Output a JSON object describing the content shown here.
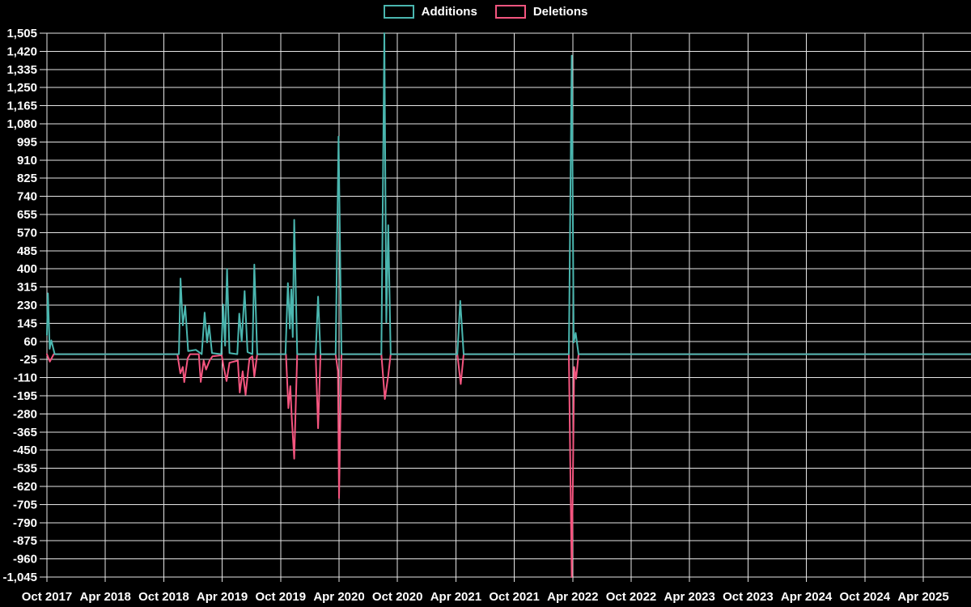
{
  "page": {
    "background": "#000000",
    "text_color": "#ffffff",
    "grid_color": "#e6e6e6"
  },
  "legend": {
    "items": [
      {
        "label": "Additions",
        "color": "#4ab6af"
      },
      {
        "label": "Deletions",
        "color": "#f4557f"
      }
    ]
  },
  "chart_data": {
    "type": "line",
    "title": "",
    "xlabel": "",
    "ylabel": "",
    "grid": true,
    "legend_position": "top-center",
    "x_axis": {
      "tick_labels": [
        "Oct 2017",
        "Apr 2018",
        "Oct 2018",
        "Apr 2019",
        "Oct 2019",
        "Apr 2020",
        "Oct 2020",
        "Apr 2021",
        "Oct 2021",
        "Apr 2022",
        "Oct 2022",
        "Apr 2023",
        "Oct 2023",
        "Apr 2024",
        "Oct 2024",
        "Apr 2025"
      ],
      "tick_interval_months": 6,
      "range_months_since_oct_2017": [
        0,
        94.9
      ]
    },
    "y_axis": {
      "min": -1045,
      "max": 1505,
      "step": 85,
      "ticks": [
        1505,
        1420,
        1335,
        1250,
        1165,
        1080,
        995,
        910,
        825,
        740,
        655,
        570,
        485,
        400,
        315,
        230,
        145,
        60,
        -25,
        -110,
        -195,
        -280,
        -365,
        -450,
        -535,
        -620,
        -705,
        -790,
        -875,
        -960,
        -1045
      ]
    },
    "series": [
      {
        "name": "Additions",
        "color": "#4ab6af",
        "points": [
          [
            0,
            90
          ],
          [
            0.1,
            285
          ],
          [
            0.28,
            25
          ],
          [
            0.45,
            65
          ],
          [
            0.8,
            0
          ],
          [
            13.3,
            0
          ],
          [
            13.55,
            0
          ],
          [
            13.72,
            355
          ],
          [
            13.95,
            135
          ],
          [
            14.2,
            225
          ],
          [
            14.5,
            15
          ],
          [
            15.3,
            20
          ],
          [
            15.9,
            0
          ],
          [
            16.2,
            195
          ],
          [
            16.45,
            55
          ],
          [
            16.65,
            135
          ],
          [
            16.95,
            5
          ],
          [
            17.9,
            0
          ],
          [
            18.1,
            233
          ],
          [
            18.3,
            40
          ],
          [
            18.5,
            400
          ],
          [
            18.75,
            5
          ],
          [
            19.55,
            0
          ],
          [
            19.75,
            190
          ],
          [
            20.0,
            60
          ],
          [
            20.3,
            296
          ],
          [
            20.6,
            10
          ],
          [
            21.1,
            0
          ],
          [
            21.3,
            420
          ],
          [
            21.6,
            0
          ],
          [
            24.5,
            0
          ],
          [
            24.75,
            333
          ],
          [
            24.95,
            120
          ],
          [
            25.1,
            304
          ],
          [
            25.25,
            80
          ],
          [
            25.4,
            630
          ],
          [
            25.7,
            0
          ],
          [
            27.6,
            0
          ],
          [
            27.85,
            270
          ],
          [
            28.1,
            0
          ],
          [
            29.65,
            0
          ],
          [
            29.95,
            1020
          ],
          [
            30.25,
            0
          ],
          [
            34.35,
            0
          ],
          [
            34.65,
            1505
          ],
          [
            34.85,
            150
          ],
          [
            35.05,
            605
          ],
          [
            35.3,
            0
          ],
          [
            42.15,
            0
          ],
          [
            42.45,
            250
          ],
          [
            42.8,
            0
          ],
          [
            53.6,
            0
          ],
          [
            53.9,
            1400
          ],
          [
            54.1,
            55
          ],
          [
            54.3,
            100
          ],
          [
            54.6,
            0
          ],
          [
            94.9,
            0
          ]
        ]
      },
      {
        "name": "Deletions",
        "color": "#f4557f",
        "points": [
          [
            0,
            0
          ],
          [
            0.3,
            -35
          ],
          [
            0.7,
            0
          ],
          [
            13.4,
            0
          ],
          [
            13.7,
            -90
          ],
          [
            13.95,
            -60
          ],
          [
            14.1,
            -131
          ],
          [
            14.45,
            -20
          ],
          [
            14.7,
            0
          ],
          [
            15.6,
            0
          ],
          [
            15.8,
            -130
          ],
          [
            16.1,
            -30
          ],
          [
            16.35,
            -72
          ],
          [
            16.7,
            -30
          ],
          [
            17.0,
            -10
          ],
          [
            17.95,
            -5
          ],
          [
            18.15,
            -60
          ],
          [
            18.45,
            -126
          ],
          [
            18.75,
            -40
          ],
          [
            19.6,
            -30
          ],
          [
            19.8,
            -180
          ],
          [
            20.1,
            -80
          ],
          [
            20.4,
            -190
          ],
          [
            20.8,
            -20
          ],
          [
            21.1,
            -10
          ],
          [
            21.3,
            -105
          ],
          [
            21.6,
            0
          ],
          [
            24.55,
            0
          ],
          [
            24.8,
            -253
          ],
          [
            25.0,
            -150
          ],
          [
            25.15,
            -300
          ],
          [
            25.4,
            -490
          ],
          [
            25.7,
            0
          ],
          [
            27.6,
            0
          ],
          [
            27.85,
            -347
          ],
          [
            28.1,
            0
          ],
          [
            29.65,
            0
          ],
          [
            29.88,
            -80
          ],
          [
            30.0,
            -675
          ],
          [
            30.25,
            0
          ],
          [
            34.35,
            0
          ],
          [
            34.7,
            -210
          ],
          [
            35.05,
            -100
          ],
          [
            35.3,
            0
          ],
          [
            42.15,
            0
          ],
          [
            42.5,
            -140
          ],
          [
            42.8,
            0
          ],
          [
            53.6,
            0
          ],
          [
            53.9,
            -1045
          ],
          [
            54.15,
            -60
          ],
          [
            54.35,
            -115
          ],
          [
            54.6,
            0
          ],
          [
            94.9,
            0
          ]
        ]
      }
    ]
  }
}
